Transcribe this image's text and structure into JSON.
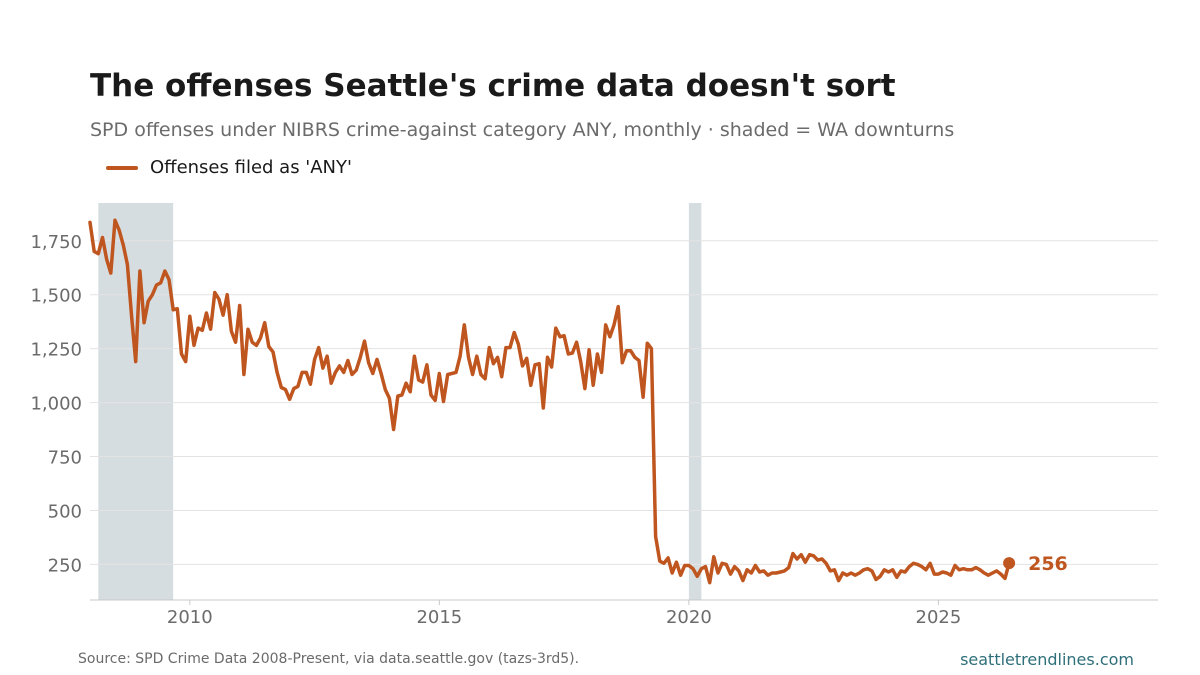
{
  "title": "The offenses Seattle's crime data doesn't sort",
  "subtitle": "SPD offenses under NIBRS crime-against category ANY, monthly · shaded = WA downturns",
  "source": "Source: SPD Crime Data 2008-Present, via data.seattle.gov (tazs-3rd5).",
  "brand": "seattletrendlines.com",
  "colors": {
    "line": "#c0561f",
    "recession": "#d6dde1",
    "grid": "#e3e3e3",
    "axis_text": "#6b6b6b"
  },
  "chart_data": {
    "type": "line",
    "grid": true,
    "legend_position": "top-left",
    "x_start": "2008-01",
    "xlim": [
      2008.0,
      2029.4
    ],
    "ylim": [
      85,
      1925
    ],
    "x_ticks": [
      2010,
      2015,
      2020,
      2025
    ],
    "x_tick_labels": [
      "2010",
      "2015",
      "2020",
      "2025"
    ],
    "y_ticks": [
      250,
      500,
      750,
      1000,
      1250,
      1500,
      1750
    ],
    "y_tick_labels": [
      "250",
      "500",
      "750",
      "1,000",
      "1,250",
      "1,500",
      "1,750"
    ],
    "shaded_periods": [
      {
        "start": "2008-03",
        "end": "2009-09"
      },
      {
        "start": "2020-01",
        "end": "2020-04"
      }
    ],
    "end_label": "256",
    "series": [
      {
        "name": "Offenses filed as 'ANY'",
        "values": [
          1835,
          1700,
          1690,
          1765,
          1665,
          1600,
          1845,
          1800,
          1730,
          1640,
          1400,
          1190,
          1610,
          1370,
          1470,
          1500,
          1545,
          1555,
          1610,
          1570,
          1430,
          1435,
          1225,
          1190,
          1400,
          1265,
          1345,
          1335,
          1415,
          1340,
          1510,
          1480,
          1405,
          1500,
          1330,
          1280,
          1450,
          1130,
          1340,
          1280,
          1265,
          1300,
          1370,
          1260,
          1235,
          1140,
          1070,
          1060,
          1015,
          1065,
          1075,
          1140,
          1140,
          1085,
          1200,
          1255,
          1160,
          1215,
          1090,
          1140,
          1170,
          1140,
          1195,
          1130,
          1150,
          1210,
          1285,
          1185,
          1135,
          1200,
          1135,
          1060,
          1020,
          875,
          1030,
          1035,
          1090,
          1050,
          1215,
          1105,
          1095,
          1175,
          1035,
          1010,
          1135,
          1005,
          1130,
          1135,
          1140,
          1215,
          1360,
          1210,
          1130,
          1215,
          1130,
          1110,
          1255,
          1180,
          1210,
          1120,
          1255,
          1255,
          1325,
          1270,
          1170,
          1205,
          1080,
          1175,
          1180,
          975,
          1210,
          1165,
          1345,
          1305,
          1310,
          1225,
          1230,
          1280,
          1190,
          1065,
          1245,
          1080,
          1225,
          1140,
          1360,
          1305,
          1360,
          1445,
          1185,
          1240,
          1240,
          1210,
          1195,
          1025,
          1275,
          1250,
          380,
          265,
          255,
          280,
          210,
          260,
          200,
          245,
          245,
          230,
          195,
          230,
          240,
          165,
          285,
          210,
          255,
          250,
          205,
          240,
          220,
          175,
          225,
          210,
          245,
          215,
          220,
          200,
          210,
          210,
          215,
          220,
          235,
          300,
          275,
          295,
          260,
          295,
          290,
          270,
          275,
          255,
          220,
          225,
          175,
          210,
          200,
          210,
          200,
          210,
          225,
          230,
          220,
          180,
          195,
          225,
          215,
          225,
          190,
          220,
          215,
          240,
          255,
          250,
          240,
          225,
          255,
          205,
          205,
          215,
          210,
          200,
          245,
          225,
          230,
          225,
          225,
          235,
          225,
          210,
          200,
          210,
          220,
          205,
          185,
          256
        ]
      }
    ]
  }
}
